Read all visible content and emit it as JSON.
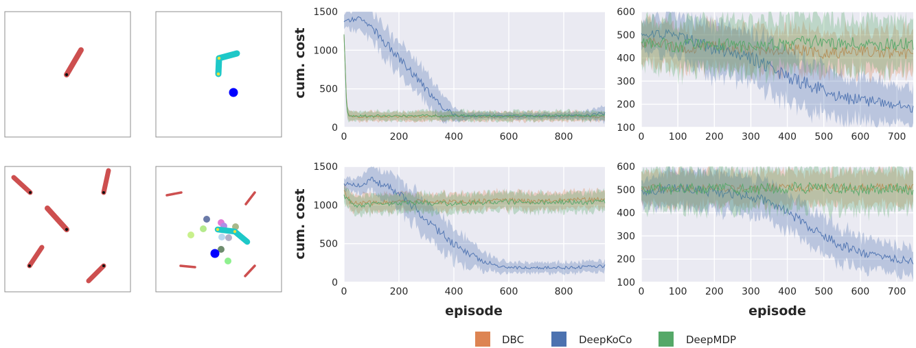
{
  "colors": {
    "DBC": "#dd8452",
    "DeepKoCo": "#4c72b0",
    "DeepMDP": "#55a868",
    "panel_bg": "#eaeaf2",
    "grid": "#ffffff",
    "pole": "#cd4f4f",
    "agent": "#1ec8c8",
    "goal": "#0000ff"
  },
  "legend": {
    "items": [
      {
        "label": "DBC",
        "color_key": "DBC"
      },
      {
        "label": "DeepKoCo",
        "color_key": "DeepKoCo"
      },
      {
        "label": "DeepMDP",
        "color_key": "DeepMDP"
      }
    ]
  },
  "env_panels": [
    {
      "name": "env-pendulum-clean",
      "description_icon": "pendulum-icon"
    },
    {
      "name": "env-manipulator-clean",
      "description_icon": "manipulator-icon"
    },
    {
      "name": "env-pendulum-distractors",
      "description_icon": "pendulum-distractors-icon"
    },
    {
      "name": "env-manipulator-distractors",
      "description_icon": "manipulator-distractors-icon"
    }
  ],
  "chart_data": [
    {
      "type": "line",
      "position": "top-left",
      "xlabel": "",
      "ylabel": "cum. cost",
      "xlim": [
        0,
        950
      ],
      "ylim": [
        0,
        1500
      ],
      "xticks": [
        0,
        200,
        400,
        600,
        800
      ],
      "yticks": [
        0,
        500,
        1000,
        1500
      ],
      "grid": true,
      "series": [
        {
          "name": "DBC",
          "x": [
            0,
            10,
            20,
            50,
            100,
            200,
            300,
            400,
            500,
            600,
            700,
            800,
            900,
            950
          ],
          "y": [
            1200,
            250,
            140,
            140,
            140,
            145,
            140,
            145,
            140,
            140,
            140,
            145,
            140,
            140
          ],
          "band": [
            50,
            80,
            60,
            60,
            60,
            60,
            60,
            60,
            60,
            60,
            60,
            60,
            60,
            60
          ]
        },
        {
          "name": "DeepKoCo",
          "x": [
            0,
            25,
            60,
            100,
            150,
            200,
            250,
            300,
            350,
            400,
            450,
            500,
            600,
            700,
            800,
            900,
            950
          ],
          "y": [
            1360,
            1400,
            1420,
            1300,
            1100,
            900,
            700,
            500,
            300,
            160,
            150,
            150,
            150,
            150,
            150,
            160,
            190
          ],
          "band": [
            80,
            120,
            150,
            180,
            200,
            200,
            200,
            200,
            180,
            90,
            40,
            40,
            40,
            40,
            40,
            60,
            100
          ]
        },
        {
          "name": "DeepMDP",
          "x": [
            0,
            10,
            20,
            50,
            100,
            200,
            300,
            400,
            500,
            600,
            700,
            800,
            900,
            950
          ],
          "y": [
            1200,
            220,
            150,
            150,
            150,
            150,
            150,
            155,
            150,
            150,
            150,
            155,
            150,
            150
          ],
          "band": [
            50,
            100,
            70,
            60,
            60,
            60,
            60,
            60,
            60,
            60,
            60,
            60,
            60,
            60
          ]
        }
      ]
    },
    {
      "type": "line",
      "position": "top-right",
      "xlabel": "",
      "ylabel": "",
      "xlim": [
        0,
        745
      ],
      "ylim": [
        100,
        600
      ],
      "xticks": [
        0,
        100,
        200,
        300,
        400,
        500,
        600,
        700
      ],
      "yticks": [
        100,
        200,
        300,
        400,
        500,
        600
      ],
      "grid": true,
      "series": [
        {
          "name": "DBC",
          "x": [
            0,
            50,
            100,
            200,
            300,
            400,
            500,
            600,
            700,
            745
          ],
          "y": [
            460,
            470,
            440,
            450,
            430,
            440,
            420,
            430,
            420,
            420
          ],
          "band": [
            80,
            90,
            90,
            90,
            90,
            90,
            90,
            90,
            90,
            90
          ]
        },
        {
          "name": "DeepKoCo",
          "x": [
            0,
            50,
            100,
            150,
            200,
            250,
            300,
            350,
            400,
            450,
            500,
            550,
            600,
            650,
            700,
            745
          ],
          "y": [
            500,
            505,
            490,
            470,
            440,
            430,
            400,
            360,
            320,
            290,
            260,
            230,
            220,
            210,
            200,
            180
          ],
          "band": [
            70,
            80,
            90,
            100,
            110,
            110,
            110,
            110,
            110,
            110,
            100,
            100,
            90,
            90,
            80,
            80
          ]
        },
        {
          "name": "DeepMDP",
          "x": [
            0,
            50,
            100,
            200,
            300,
            400,
            500,
            600,
            700,
            745
          ],
          "y": [
            460,
            470,
            450,
            460,
            450,
            460,
            470,
            460,
            460,
            460
          ],
          "band": [
            100,
            110,
            110,
            110,
            110,
            110,
            110,
            110,
            110,
            110
          ]
        }
      ]
    },
    {
      "type": "line",
      "position": "bottom-left",
      "xlabel": "episode",
      "ylabel": "cum. cost",
      "xlim": [
        0,
        950
      ],
      "ylim": [
        0,
        1500
      ],
      "xticks": [
        0,
        200,
        400,
        600,
        800
      ],
      "yticks": [
        0,
        500,
        1000,
        1500
      ],
      "grid": true,
      "series": [
        {
          "name": "DBC",
          "x": [
            0,
            25,
            50,
            100,
            200,
            300,
            400,
            500,
            600,
            700,
            800,
            900,
            950
          ],
          "y": [
            1180,
            1030,
            1020,
            1030,
            1040,
            1050,
            1040,
            1050,
            1060,
            1050,
            1060,
            1070,
            1070
          ],
          "band": [
            100,
            110,
            110,
            110,
            110,
            110,
            110,
            110,
            110,
            110,
            110,
            110,
            110
          ]
        },
        {
          "name": "DeepKoCo",
          "x": [
            0,
            25,
            50,
            100,
            150,
            200,
            250,
            300,
            350,
            400,
            450,
            500,
            550,
            600,
            700,
            800,
            900,
            950
          ],
          "y": [
            1270,
            1280,
            1250,
            1330,
            1250,
            1150,
            1000,
            800,
            650,
            500,
            380,
            280,
            220,
            190,
            190,
            190,
            200,
            210
          ],
          "band": [
            70,
            80,
            100,
            150,
            180,
            200,
            220,
            230,
            230,
            210,
            180,
            120,
            90,
            70,
            70,
            70,
            70,
            70
          ]
        },
        {
          "name": "DeepMDP",
          "x": [
            0,
            25,
            50,
            100,
            200,
            300,
            400,
            500,
            600,
            700,
            800,
            900,
            950
          ],
          "y": [
            1120,
            1030,
            1000,
            1010,
            1020,
            1030,
            1020,
            1030,
            1040,
            1030,
            1040,
            1040,
            1040
          ],
          "band": [
            110,
            120,
            120,
            120,
            120,
            120,
            120,
            120,
            120,
            120,
            120,
            120,
            120
          ]
        }
      ]
    },
    {
      "type": "line",
      "position": "bottom-right",
      "xlabel": "episode",
      "ylabel": "",
      "xlim": [
        0,
        745
      ],
      "ylim": [
        100,
        600
      ],
      "xticks": [
        0,
        100,
        200,
        300,
        400,
        500,
        600,
        700
      ],
      "yticks": [
        100,
        200,
        300,
        400,
        500,
        600
      ],
      "grid": true,
      "series": [
        {
          "name": "DBC",
          "x": [
            0,
            50,
            100,
            200,
            300,
            400,
            500,
            600,
            700,
            745
          ],
          "y": [
            500,
            510,
            505,
            510,
            505,
            510,
            505,
            510,
            505,
            510
          ],
          "band": [
            60,
            70,
            70,
            70,
            70,
            70,
            70,
            70,
            70,
            70
          ]
        },
        {
          "name": "DeepKoCo",
          "x": [
            0,
            50,
            100,
            150,
            200,
            250,
            300,
            350,
            400,
            450,
            500,
            550,
            600,
            650,
            700,
            745
          ],
          "y": [
            490,
            500,
            505,
            500,
            490,
            480,
            470,
            450,
            400,
            350,
            300,
            260,
            230,
            210,
            200,
            190
          ],
          "band": [
            60,
            70,
            80,
            80,
            80,
            80,
            80,
            80,
            80,
            80,
            80,
            80,
            70,
            60,
            60,
            60
          ]
        },
        {
          "name": "DeepMDP",
          "x": [
            0,
            50,
            100,
            200,
            300,
            400,
            500,
            600,
            700,
            745
          ],
          "y": [
            500,
            505,
            500,
            505,
            500,
            510,
            505,
            500,
            505,
            500
          ],
          "band": [
            80,
            90,
            90,
            90,
            90,
            90,
            90,
            90,
            90,
            90
          ]
        }
      ]
    }
  ]
}
